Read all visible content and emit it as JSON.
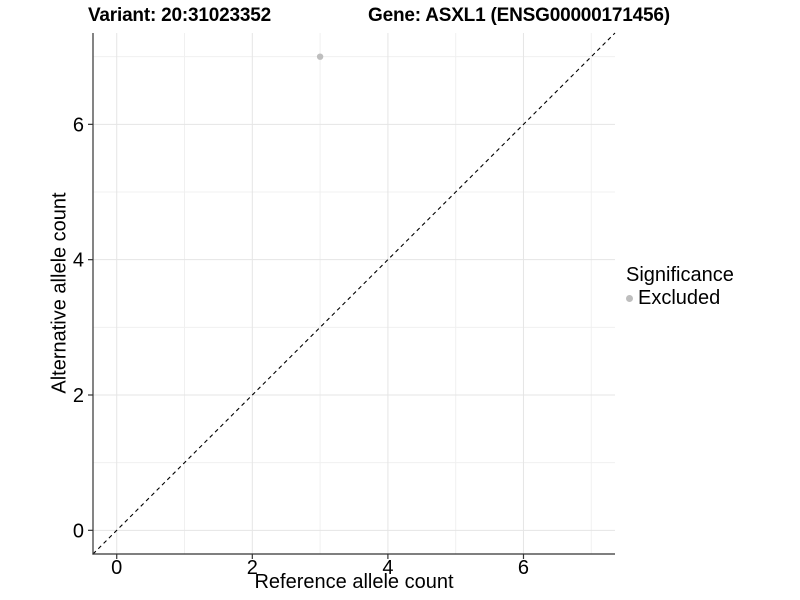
{
  "title": {
    "variant": "Variant: 20:31023352",
    "gene": "Gene: ASXL1 (ENSG00000171456)"
  },
  "legend": {
    "title": "Significance",
    "items": [
      {
        "label": "Excluded",
        "color": "#bebebe"
      }
    ]
  },
  "colors": {
    "grid_major": "#e5e5e5",
    "grid_minor": "#f0f0f0",
    "axis_line": "#333333",
    "tick_mark": "#333333",
    "tick_text": "#000000",
    "identity_line": "#000000",
    "point": "#bebebe"
  },
  "chart_data": {
    "type": "scatter",
    "title_left": "Variant: 20:31023352",
    "title_right": "Gene: ASXL1 (ENSG00000171456)",
    "xlabel": "Reference allele count",
    "ylabel": "Alternative allele count",
    "xlim": [
      -0.35,
      7.35
    ],
    "ylim": [
      -0.35,
      7.35
    ],
    "x_ticks": [
      0,
      2,
      4,
      6
    ],
    "y_ticks": [
      0,
      2,
      4,
      6
    ],
    "x_minor_grid": [
      1,
      3,
      5,
      7
    ],
    "y_minor_grid": [
      1,
      3,
      5,
      7
    ],
    "grid": true,
    "legend_position": "right",
    "series": [
      {
        "name": "Excluded",
        "color": "#bebebe",
        "points": [
          {
            "x": 3,
            "y": 7
          }
        ]
      }
    ],
    "reference_line": {
      "equation": "y = x",
      "style": "dashed",
      "color": "#000000"
    }
  }
}
